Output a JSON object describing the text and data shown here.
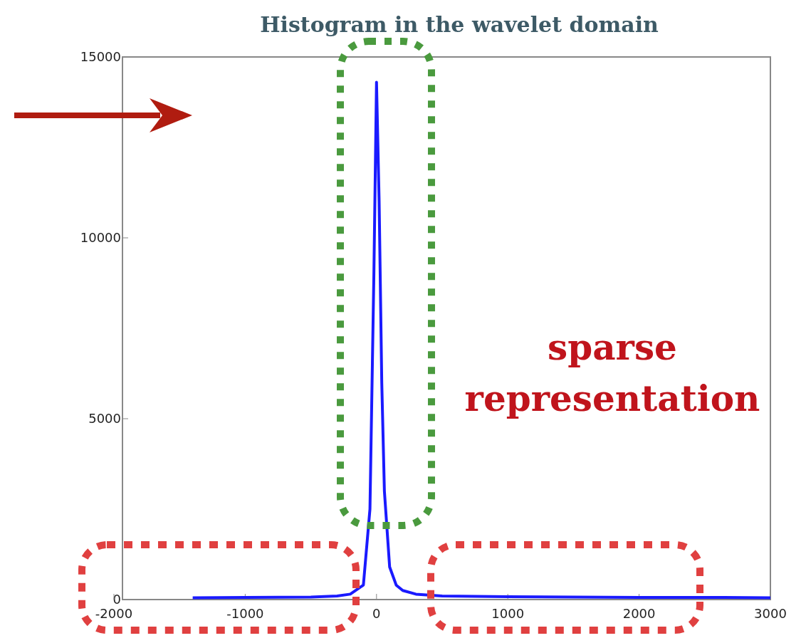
{
  "chart_data": {
    "type": "line",
    "title": "Histogram in the wavelet domain",
    "x": [
      -1400,
      -1000,
      -500,
      -300,
      -200,
      -100,
      -50,
      -20,
      0,
      20,
      40,
      60,
      100,
      150,
      200,
      300,
      500,
      1000,
      1500,
      2000,
      2500,
      3000
    ],
    "series": [
      {
        "color": "#1a1aff",
        "values": [
          50,
          60,
          70,
          100,
          150,
          400,
          2500,
          9000,
          14300,
          11000,
          6000,
          3000,
          900,
          400,
          250,
          150,
          100,
          80,
          70,
          60,
          60,
          50
        ]
      }
    ],
    "xlim": [
      -2000,
      3000
    ],
    "xticks": [
      -2000,
      -1000,
      0,
      1000,
      2000,
      3000
    ],
    "ylim": [
      0,
      15000
    ],
    "yticks": [
      0,
      5000,
      10000,
      15000
    ],
    "grid": false,
    "marker": "none",
    "line_style": "solid",
    "annotations": [
      "sparse representation"
    ]
  }
}
